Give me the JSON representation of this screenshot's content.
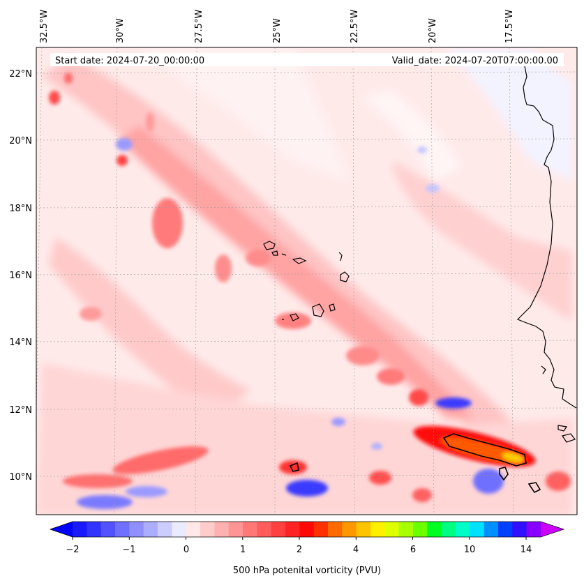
{
  "header": {
    "start_date": "Start date: 2024-07-20_00:00:00",
    "valid_date": "Valid_date: 2024-07-20T07:00:00.00"
  },
  "map": {
    "lon_labels": [
      "32.5°W",
      "30°W",
      "27.5°W",
      "25°W",
      "22.5°W",
      "20°W",
      "17.5°W"
    ],
    "lat_labels": [
      "22°N",
      "20°N",
      "18°N",
      "16°N",
      "14°N",
      "12°N",
      "10°N"
    ]
  },
  "colorbar": {
    "tick_labels": [
      "−2",
      "−1",
      "0",
      "1",
      "2",
      "4",
      "6",
      "10",
      "14"
    ],
    "label": "500 hPa potenital vorticity (PVU)",
    "colors": [
      "#1a1aff",
      "#3333ff",
      "#5252ff",
      "#7070ff",
      "#8f8fff",
      "#adadff",
      "#ccccff",
      "#ebebff",
      "#ffe8e8",
      "#ffcccc",
      "#ffb0b0",
      "#ff9494",
      "#ff7878",
      "#ff5c5c",
      "#ff4040",
      "#ff2424",
      "#ff0808",
      "#ff3000",
      "#ff6a00",
      "#ff9800",
      "#ffc400",
      "#fff000",
      "#ddff00",
      "#a8ff00",
      "#6bff00",
      "#00ff20",
      "#00ff80",
      "#00ffc8",
      "#00e0ff",
      "#0090ff",
      "#0040ff",
      "#3010ff",
      "#8800ff"
    ],
    "under_color": "#0000ff",
    "over_color": "#cc00ff"
  }
}
